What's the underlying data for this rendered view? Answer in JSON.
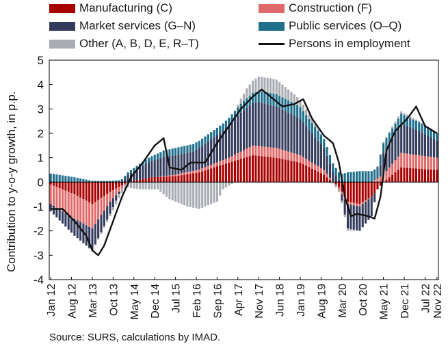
{
  "chart_data": {
    "type": "bar",
    "stacked": true,
    "ylabel": "Contribution to y-o-y growth, in p.p.",
    "ylim": [
      -4,
      5
    ],
    "yticks": [
      -4,
      -3,
      -2,
      -1,
      0,
      1,
      2,
      3,
      4,
      5
    ],
    "x_tick_labels": [
      "Jan 12",
      "Aug 12",
      "Mar 13",
      "Oct 13",
      "May 14",
      "Dec 14",
      "Jul 15",
      "Feb 16",
      "Sep 16",
      "Apr 17",
      "Nov 17",
      "Jun 18",
      "Jan 19",
      "Aug 19",
      "Mar 20",
      "Oct 20",
      "May 21",
      "Dec 21",
      "Jul 22",
      "Nov 22"
    ],
    "x_tick_month_index": [
      0,
      7,
      14,
      21,
      28,
      35,
      42,
      49,
      56,
      63,
      70,
      77,
      84,
      91,
      98,
      105,
      112,
      119,
      126,
      130
    ],
    "colors": {
      "manufacturing": "#a80000",
      "construction": "#e06a6a",
      "market": "#343c5e",
      "public": "#1f6f8b",
      "other": "#a9adb3",
      "line": "#111111"
    },
    "legend": {
      "manufacturing": "Manufacturing (C)",
      "construction": "Construction (F)",
      "market": "Market services (G–N)",
      "public": "Public services (O–Q)",
      "other": "Other (A, B, D, E, R–T)",
      "line": "Persons in employment"
    },
    "series_keyframes": {
      "manufacturing": [
        [
          0,
          -0.1
        ],
        [
          8,
          -0.5
        ],
        [
          14,
          -0.9
        ],
        [
          20,
          -0.4
        ],
        [
          26,
          0
        ],
        [
          34,
          0.2
        ],
        [
          42,
          0.25
        ],
        [
          50,
          0.4
        ],
        [
          60,
          0.8
        ],
        [
          68,
          1.1
        ],
        [
          76,
          1.0
        ],
        [
          84,
          0.8
        ],
        [
          92,
          0.3
        ],
        [
          97,
          -0.2
        ],
        [
          100,
          -0.8
        ],
        [
          104,
          -0.9
        ],
        [
          108,
          -0.6
        ],
        [
          112,
          0
        ],
        [
          118,
          0.6
        ],
        [
          124,
          0.55
        ],
        [
          130,
          0.5
        ]
      ],
      "construction": [
        [
          0,
          -0.8
        ],
        [
          8,
          -1.0
        ],
        [
          14,
          -1.0
        ],
        [
          20,
          -0.4
        ],
        [
          26,
          0
        ],
        [
          36,
          0
        ],
        [
          48,
          0.1
        ],
        [
          60,
          0.2
        ],
        [
          68,
          0.4
        ],
        [
          76,
          0.4
        ],
        [
          84,
          0.3
        ],
        [
          92,
          0.2
        ],
        [
          97,
          -0.1
        ],
        [
          100,
          -0.1
        ],
        [
          104,
          -0.1
        ],
        [
          108,
          0
        ],
        [
          112,
          0.3
        ],
        [
          118,
          0.6
        ],
        [
          124,
          0.55
        ],
        [
          130,
          0.5
        ]
      ],
      "market": [
        [
          0,
          -0.3
        ],
        [
          8,
          -0.7
        ],
        [
          14,
          -0.9
        ],
        [
          20,
          -0.5
        ],
        [
          26,
          0.3
        ],
        [
          32,
          0.6
        ],
        [
          38,
          0.8
        ],
        [
          48,
          0.8
        ],
        [
          58,
          1.2
        ],
        [
          64,
          1.6
        ],
        [
          70,
          1.8
        ],
        [
          76,
          1.7
        ],
        [
          84,
          1.5
        ],
        [
          92,
          0.9
        ],
        [
          97,
          0.1
        ],
        [
          100,
          -1.0
        ],
        [
          104,
          -1.0
        ],
        [
          108,
          -0.8
        ],
        [
          112,
          0.9
        ],
        [
          118,
          1.2
        ],
        [
          124,
          1.0
        ],
        [
          130,
          0.7
        ]
      ],
      "public": [
        [
          0,
          0.35
        ],
        [
          8,
          0.2
        ],
        [
          14,
          0.05
        ],
        [
          20,
          0.05
        ],
        [
          26,
          0.1
        ],
        [
          34,
          0.2
        ],
        [
          42,
          0.3
        ],
        [
          50,
          0.3
        ],
        [
          60,
          0.3
        ],
        [
          66,
          0.4
        ],
        [
          74,
          0.5
        ],
        [
          82,
          0.5
        ],
        [
          90,
          0.4
        ],
        [
          97,
          0.3
        ],
        [
          100,
          0.4
        ],
        [
          104,
          0.45
        ],
        [
          108,
          0.45
        ],
        [
          112,
          0.4
        ],
        [
          118,
          0.4
        ],
        [
          124,
          0.35
        ],
        [
          130,
          0.3
        ]
      ],
      "other": [
        [
          0,
          0
        ],
        [
          10,
          0
        ],
        [
          20,
          -0.1
        ],
        [
          30,
          -0.3
        ],
        [
          36,
          -0.3
        ],
        [
          40,
          -0.7
        ],
        [
          46,
          -1.0
        ],
        [
          50,
          -1.1
        ],
        [
          56,
          -0.8
        ],
        [
          58,
          -0.3
        ],
        [
          62,
          0
        ],
        [
          66,
          0.4
        ],
        [
          70,
          0.6
        ],
        [
          76,
          0.6
        ],
        [
          84,
          0.3
        ],
        [
          92,
          0
        ],
        [
          97,
          -0.1
        ],
        [
          100,
          -0.1
        ],
        [
          104,
          0
        ],
        [
          108,
          0
        ],
        [
          112,
          0.05
        ],
        [
          118,
          0.1
        ],
        [
          124,
          0.05
        ],
        [
          130,
          0.05
        ]
      ],
      "employment": [
        [
          0,
          -1.1
        ],
        [
          4,
          -1.1
        ],
        [
          8,
          -1.6
        ],
        [
          12,
          -2.2
        ],
        [
          14,
          -2.8
        ],
        [
          16,
          -3.0
        ],
        [
          18,
          -2.6
        ],
        [
          21,
          -1.6
        ],
        [
          24,
          -0.6
        ],
        [
          27,
          0.2
        ],
        [
          31,
          0.8
        ],
        [
          35,
          1.5
        ],
        [
          38,
          1.8
        ],
        [
          40,
          0.6
        ],
        [
          44,
          0.5
        ],
        [
          47,
          0.8
        ],
        [
          52,
          0.8
        ],
        [
          56,
          1.6
        ],
        [
          60,
          2.3
        ],
        [
          64,
          3.0
        ],
        [
          68,
          3.5
        ],
        [
          71,
          3.8
        ],
        [
          74,
          3.5
        ],
        [
          78,
          3.1
        ],
        [
          82,
          3.2
        ],
        [
          85,
          3.4
        ],
        [
          88,
          2.6
        ],
        [
          92,
          1.9
        ],
        [
          95,
          1.6
        ],
        [
          97,
          0.8
        ],
        [
          99,
          -0.6
        ],
        [
          101,
          -1.4
        ],
        [
          103,
          -1.3
        ],
        [
          107,
          -1.4
        ],
        [
          109,
          -1.5
        ],
        [
          111,
          -0.6
        ],
        [
          113,
          1.3
        ],
        [
          116,
          2.1
        ],
        [
          120,
          2.6
        ],
        [
          123,
          3.1
        ],
        [
          126,
          2.3
        ],
        [
          130,
          2.0
        ]
      ]
    }
  },
  "source": "Source: SURS, calculations by IMAD."
}
